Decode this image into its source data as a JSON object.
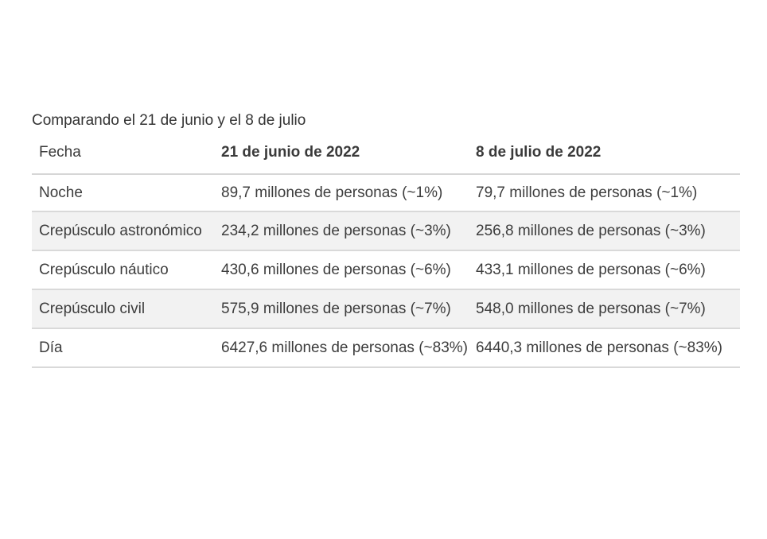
{
  "caption": "Comparando el 21 de junio y el 8 de julio",
  "headers": {
    "label": "Fecha",
    "date1": "21 de junio de 2022",
    "date2": "8 de julio de 2022"
  },
  "rows": [
    {
      "label": "Noche",
      "date1": "89,7 millones de personas (~1%)",
      "date2": "79,7 millones de personas (~1%)"
    },
    {
      "label": "Crepúsculo astronómico",
      "date1": "234,2 millones de personas (~3%)",
      "date2": "256,8 millones de personas (~3%)"
    },
    {
      "label": "Crepúsculo náutico",
      "date1": "430,6 millones de personas (~6%)",
      "date2": "433,1 millones de personas (~6%)"
    },
    {
      "label": "Crepúsculo civil",
      "date1": "575,9 millones de personas (~7%)",
      "date2": "548,0 millones de personas (~7%)"
    },
    {
      "label": "Día",
      "date1": "6427,6 millones de personas (~83%)",
      "date2": "6440,3 millones de personas (~83%)"
    }
  ]
}
